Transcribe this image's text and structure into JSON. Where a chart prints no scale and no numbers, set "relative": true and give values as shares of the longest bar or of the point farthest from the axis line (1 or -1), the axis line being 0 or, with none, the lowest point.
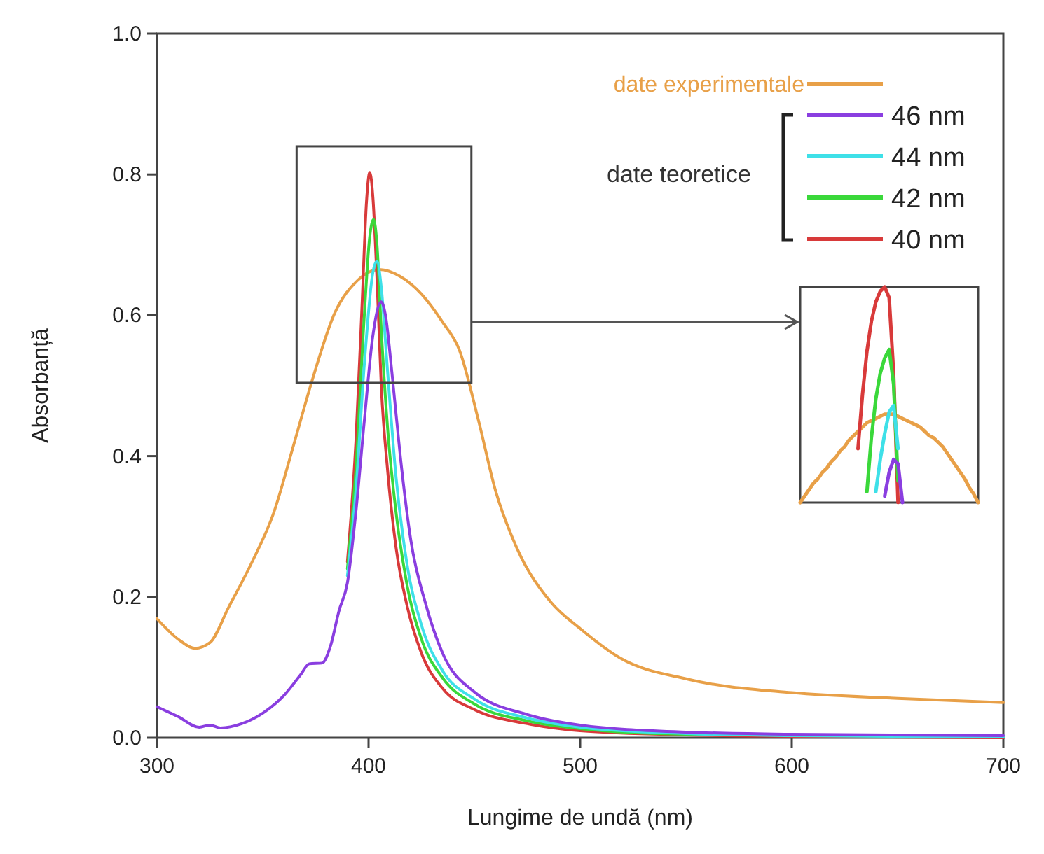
{
  "chart_data": [
    {
      "type": "line",
      "xlabel": "Lungime de undă (nm)",
      "ylabel": "Absorbanță",
      "legend_title": "date teoretice",
      "legend": "top right",
      "grid": false,
      "marker": "none",
      "line_style": "solid",
      "xlim": [
        300,
        700
      ],
      "xticks": [
        300,
        400,
        500,
        600,
        700
      ],
      "ylim": [
        0,
        1
      ],
      "yticks": [
        {
          "value": 0,
          "label": "0.0"
        },
        0.2,
        0.4,
        0.6,
        0.8,
        {
          "value": 1,
          "label": "1.0"
        }
      ],
      "series": [
        {
          "name": "date experimentale",
          "color": "#e8a048",
          "x": [
            300,
            310,
            318,
            325,
            334,
            345,
            355,
            365,
            373,
            384,
            395,
            405,
            415,
            425,
            435,
            443,
            452,
            460,
            470,
            486,
            500,
            519,
            551,
            600,
            650,
            700
          ],
          "values": [
            0.169,
            0.14,
            0.127,
            0.135,
            0.186,
            0.25,
            0.318,
            0.42,
            0.504,
            0.603,
            0.65,
            0.665,
            0.655,
            0.63,
            0.59,
            0.55,
            0.45,
            0.351,
            0.27,
            0.193,
            0.155,
            0.113,
            0.083,
            0.064,
            0.056,
            0.05
          ]
        },
        {
          "name": "46 nm",
          "color": "#8a3ee0",
          "x": [
            300,
            310,
            320,
            325,
            330,
            340,
            350,
            360,
            368,
            372,
            378,
            382,
            386,
            390,
            394,
            398,
            402,
            406,
            408,
            411,
            415,
            420,
            427,
            435,
            450,
            475,
            500,
            550,
            600,
            700
          ],
          "values": [
            0.044,
            0.03,
            0.015,
            0.018,
            0.014,
            0.02,
            0.035,
            0.06,
            0.09,
            0.105,
            0.106,
            0.13,
            0.18,
            0.22,
            0.32,
            0.45,
            0.57,
            0.619,
            0.6,
            0.52,
            0.4,
            0.28,
            0.19,
            0.12,
            0.065,
            0.033,
            0.018,
            0.008,
            0.005,
            0.003
          ]
        },
        {
          "name": "44 nm",
          "color": "#3ee0e8",
          "x": [
            390,
            394,
            398,
            402,
            404,
            406,
            409,
            413,
            418,
            425,
            435,
            450,
            475,
            500,
            550,
            600,
            700
          ],
          "values": [
            0.23,
            0.35,
            0.53,
            0.66,
            0.677,
            0.64,
            0.52,
            0.37,
            0.25,
            0.16,
            0.095,
            0.055,
            0.028,
            0.015,
            0.006,
            0.003,
            0.001
          ]
        },
        {
          "name": "42 nm",
          "color": "#3ad83a",
          "x": [
            390,
            394,
            398,
            400.5,
            402.4,
            404,
            406,
            409,
            413,
            418,
            425,
            435,
            450,
            475,
            500,
            550,
            600,
            700
          ],
          "values": [
            0.24,
            0.38,
            0.6,
            0.71,
            0.736,
            0.7,
            0.58,
            0.44,
            0.32,
            0.22,
            0.14,
            0.085,
            0.048,
            0.024,
            0.013,
            0.005,
            null,
            0.001
          ]
        },
        {
          "name": "40 nm",
          "color": "#d83a3a",
          "x": [
            390,
            394,
            397,
            399,
            400.6,
            402,
            404,
            406,
            409,
            413,
            418,
            425,
            435,
            450,
            475,
            500,
            550,
            600,
            700
          ],
          "values": [
            0.25,
            0.42,
            0.62,
            0.76,
            0.803,
            0.77,
            0.65,
            0.5,
            0.38,
            0.27,
            0.19,
            0.12,
            0.07,
            0.04,
            0.02,
            0.01,
            0.004,
            0.002,
            0
          ]
        }
      ]
    },
    {
      "type": "line",
      "relative": true,
      "marker": "none",
      "line_style": "solid",
      "categories": [
        null,
        null,
        null,
        null,
        null,
        null,
        null,
        null,
        null,
        null,
        null,
        null,
        null,
        null,
        null,
        null,
        null,
        null,
        null,
        null,
        null,
        null,
        null,
        null,
        null,
        null,
        null,
        null,
        null,
        null,
        null,
        null,
        null,
        null,
        null,
        null,
        null,
        null,
        null,
        null,
        null
      ],
      "series": [
        {
          "color": "#e8a048",
          "values": [
            0,
            0.03,
            0.06,
            0.09,
            0.11,
            0.14,
            0.16,
            0.19,
            0.21,
            0.24,
            0.26,
            0.29,
            0.31,
            0.33,
            0.35,
            0.37,
            0.38,
            0.39,
            0.4,
            0.41,
            0.41,
            0.41,
            0.4,
            0.39,
            0.38,
            0.37,
            0.36,
            0.35,
            0.33,
            0.31,
            0.3,
            0.28,
            0.26,
            0.23,
            0.2,
            0.17,
            0.14,
            0.11,
            0.07,
            0.04,
            0
          ]
        },
        {
          "color": "#8a3ee0",
          "values": [
            null,
            null,
            null,
            null,
            null,
            null,
            null,
            null,
            null,
            null,
            null,
            null,
            null,
            null,
            null,
            null,
            null,
            null,
            null,
            0.03,
            0.14,
            0.2,
            0.18,
            0,
            null,
            null,
            null,
            null,
            null,
            null,
            null,
            null,
            null,
            null,
            null,
            null,
            null,
            null,
            null,
            null,
            null
          ]
        },
        {
          "color": "#3ee0e8",
          "values": [
            null,
            null,
            null,
            null,
            null,
            null,
            null,
            null,
            null,
            null,
            null,
            null,
            null,
            null,
            null,
            null,
            null,
            0.05,
            0.2,
            0.32,
            0.42,
            0.45,
            0.25,
            null,
            null,
            null,
            null,
            null,
            null,
            null,
            null,
            null,
            null,
            null,
            null,
            null,
            null,
            null,
            null,
            null,
            null
          ]
        },
        {
          "color": "#3ad83a",
          "values": [
            null,
            null,
            null,
            null,
            null,
            null,
            null,
            null,
            null,
            null,
            null,
            null,
            null,
            null,
            null,
            0.05,
            0.3,
            0.48,
            0.6,
            0.67,
            0.71,
            0.55,
            0.1,
            null,
            null,
            null,
            null,
            null,
            null,
            null,
            null,
            null,
            null,
            null,
            null,
            null,
            null,
            null,
            null,
            null,
            null
          ]
        },
        {
          "color": "#d83a3a",
          "values": [
            null,
            null,
            null,
            null,
            null,
            null,
            null,
            null,
            null,
            null,
            null,
            null,
            null,
            0.25,
            0.5,
            0.7,
            0.84,
            0.93,
            0.98,
            1,
            0.95,
            0.6,
            0,
            null,
            null,
            null,
            null,
            null,
            null,
            null,
            null,
            null,
            null,
            null,
            null,
            null,
            null,
            null,
            null,
            null,
            null
          ]
        }
      ]
    }
  ]
}
